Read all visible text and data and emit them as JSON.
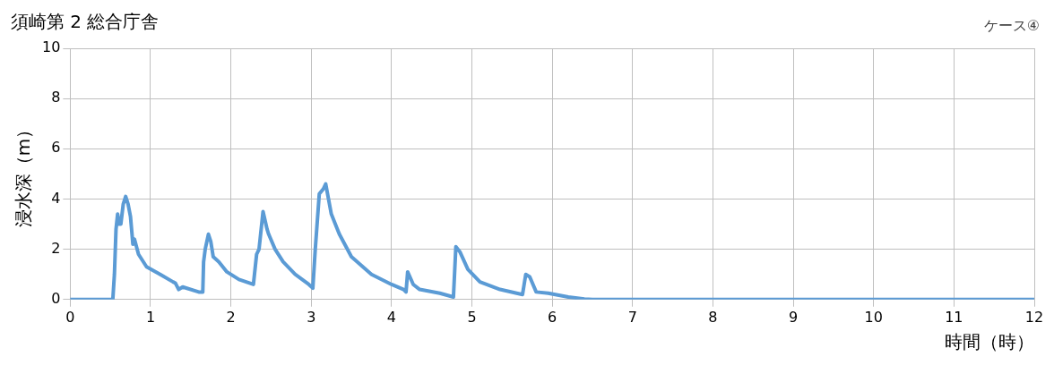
{
  "chart_data": {
    "type": "line",
    "title": "須崎第 2 総合庁舎",
    "annotations": [
      "ケース④"
    ],
    "xlabel": "時間（時）",
    "ylabel": "浸水深（m）",
    "xlim": [
      0,
      12
    ],
    "xticks": [
      0,
      1,
      2,
      3,
      4,
      5,
      6,
      7,
      8,
      9,
      10,
      11,
      12
    ],
    "ylim": [
      0,
      10
    ],
    "yticks": [
      0,
      2,
      4,
      6,
      8,
      10
    ],
    "grid": true,
    "legend": false,
    "marker": "none",
    "line_style": "solid",
    "series": [
      {
        "color": "#5b9bd5",
        "x": [
          0,
          0.53,
          0.55,
          0.57,
          0.59,
          0.61,
          0.63,
          0.66,
          0.69,
          0.72,
          0.75,
          0.78,
          0.8,
          0.85,
          0.95,
          1.12,
          1.28,
          1.31,
          1.35,
          1.4,
          1.6,
          1.65,
          1.66,
          1.68,
          1.72,
          1.75,
          1.78,
          1.85,
          1.95,
          2.1,
          2.28,
          2.32,
          2.35,
          2.4,
          2.45,
          2.47,
          2.55,
          2.65,
          2.8,
          2.97,
          3.02,
          3.05,
          3.1,
          3.15,
          3.18,
          3.25,
          3.35,
          3.5,
          3.75,
          4.0,
          4.15,
          4.18,
          4.2,
          4.27,
          4.35,
          4.6,
          4.77,
          4.8,
          4.85,
          4.95,
          5.1,
          5.35,
          5.63,
          5.67,
          5.72,
          5.8,
          5.95,
          6.2,
          6.4,
          6.5,
          12
        ],
        "values": [
          0,
          0,
          1.0,
          2.8,
          3.4,
          3.0,
          3.0,
          3.8,
          4.1,
          3.8,
          3.3,
          2.2,
          2.4,
          1.8,
          1.3,
          1.0,
          0.7,
          0.65,
          0.4,
          0.5,
          0.3,
          0.3,
          1.5,
          2.0,
          2.6,
          2.3,
          1.7,
          1.5,
          1.1,
          0.8,
          0.6,
          1.8,
          2.0,
          3.5,
          2.8,
          2.6,
          2.0,
          1.5,
          1.0,
          0.6,
          0.45,
          2.0,
          4.2,
          4.4,
          4.6,
          3.4,
          2.6,
          1.7,
          1.0,
          0.6,
          0.4,
          0.3,
          1.1,
          0.6,
          0.4,
          0.25,
          0.1,
          2.1,
          1.9,
          1.2,
          0.7,
          0.4,
          0.2,
          1.0,
          0.9,
          0.3,
          0.25,
          0.1,
          0.02,
          0,
          0
        ]
      }
    ]
  }
}
